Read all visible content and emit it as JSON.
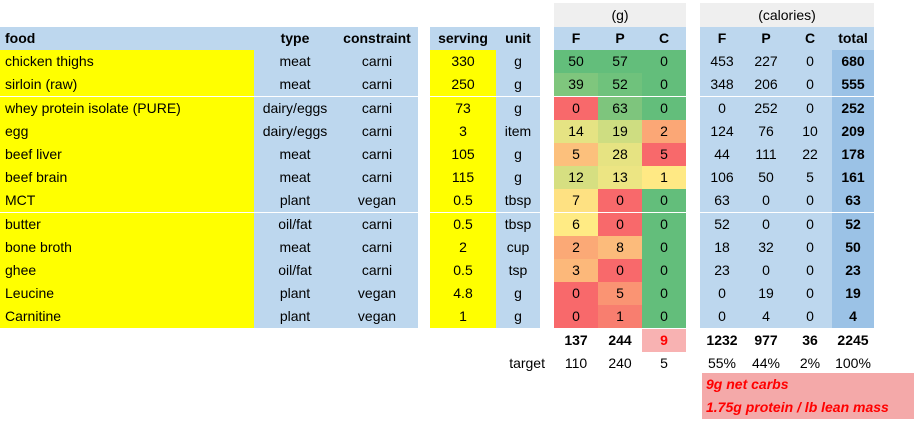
{
  "groups": {
    "grams": "(g)",
    "calories": "(calories)"
  },
  "headers": {
    "food": "food",
    "type": "type",
    "constraint": "constraint",
    "serving": "serving",
    "unit": "unit",
    "g_f": "F",
    "g_p": "P",
    "g_c": "C",
    "cal_f": "F",
    "cal_p": "P",
    "cal_c": "C",
    "total": "total"
  },
  "rows": [
    {
      "food": "chicken thighs",
      "type": "meat",
      "constraint": "carni",
      "serving": "330",
      "unit": "g",
      "gf": "50",
      "gp": "57",
      "gc": "0",
      "cf": "453",
      "cp": "227",
      "cc": "0",
      "total": "680"
    },
    {
      "food": "sirloin (raw)",
      "type": "meat",
      "constraint": "carni",
      "serving": "250",
      "unit": "g",
      "gf": "39",
      "gp": "52",
      "gc": "0",
      "cf": "348",
      "cp": "206",
      "cc": "0",
      "total": "555"
    },
    {
      "food": "whey protein isolate (PURE)",
      "type": "dairy/eggs",
      "constraint": "carni",
      "serving": "73",
      "unit": "g",
      "gf": "0",
      "gp": "63",
      "gc": "0",
      "cf": "0",
      "cp": "252",
      "cc": "0",
      "total": "252"
    },
    {
      "food": "egg",
      "type": "dairy/eggs",
      "constraint": "carni",
      "serving": "3",
      "unit": "item",
      "gf": "14",
      "gp": "19",
      "gc": "2",
      "cf": "124",
      "cp": "76",
      "cc": "10",
      "total": "209"
    },
    {
      "food": "beef liver",
      "type": "meat",
      "constraint": "carni",
      "serving": "105",
      "unit": "g",
      "gf": "5",
      "gp": "28",
      "gc": "5",
      "cf": "44",
      "cp": "111",
      "cc": "22",
      "total": "178"
    },
    {
      "food": "beef brain",
      "type": "meat",
      "constraint": "carni",
      "serving": "115",
      "unit": "g",
      "gf": "12",
      "gp": "13",
      "gc": "1",
      "cf": "106",
      "cp": "50",
      "cc": "5",
      "total": "161"
    },
    {
      "food": "MCT",
      "type": "plant",
      "constraint": "vegan",
      "serving": "0.5",
      "unit": "tbsp",
      "gf": "7",
      "gp": "0",
      "gc": "0",
      "cf": "63",
      "cp": "0",
      "cc": "0",
      "total": "63"
    },
    {
      "food": "butter",
      "type": "oil/fat",
      "constraint": "carni",
      "serving": "0.5",
      "unit": "tbsp",
      "gf": "6",
      "gp": "0",
      "gc": "0",
      "cf": "52",
      "cp": "0",
      "cc": "0",
      "total": "52"
    },
    {
      "food": "bone broth",
      "type": "meat",
      "constraint": "carni",
      "serving": "2",
      "unit": "cup",
      "gf": "2",
      "gp": "8",
      "gc": "0",
      "cf": "18",
      "cp": "32",
      "cc": "0",
      "total": "50"
    },
    {
      "food": "ghee",
      "type": "oil/fat",
      "constraint": "carni",
      "serving": "0.5",
      "unit": "tsp",
      "gf": "3",
      "gp": "0",
      "gc": "0",
      "cf": "23",
      "cp": "0",
      "cc": "0",
      "total": "23"
    },
    {
      "food": "Leucine",
      "type": "plant",
      "constraint": "vegan",
      "serving": "4.8",
      "unit": "g",
      "gf": "0",
      "gp": "5",
      "gc": "0",
      "cf": "0",
      "cp": "19",
      "cc": "0",
      "total": "19"
    },
    {
      "food": "Carnitine",
      "type": "plant",
      "constraint": "vegan",
      "serving": "1",
      "unit": "g",
      "gf": "0",
      "gp": "1",
      "gc": "0",
      "cf": "0",
      "cp": "4",
      "cc": "0",
      "total": "4"
    }
  ],
  "cell_colors": {
    "gf": [
      "#63be7b",
      "#7fc67d",
      "#f8696b",
      "#e5e383",
      "#fcc07c",
      "#d6df81",
      "#fee182",
      "#ffeb84",
      "#fba976",
      "#fcb87a",
      "#f8696b",
      "#f8696b"
    ],
    "gp": [
      "#63be7b",
      "#6fc27c",
      "#7ec57d",
      "#cedd81",
      "#e6e382",
      "#ece583",
      "#f8696b",
      "#f8696b",
      "#fcbb7b",
      "#f8696b",
      "#fa9473",
      "#f87e6f"
    ],
    "gc": [
      "#63be7b",
      "#63be7b",
      "#63be7b",
      "#fba776",
      "#f8696b",
      "#ffe984",
      "#63be7b",
      "#63be7b",
      "#63be7b",
      "#63be7b",
      "#63be7b",
      "#63be7b"
    ]
  },
  "totals": {
    "gf": "137",
    "gp": "244",
    "gc": "9",
    "cf": "1232",
    "cp": "977",
    "cc": "36",
    "total": "2245"
  },
  "target": {
    "label": "target",
    "f": "110",
    "p": "240",
    "c": "5"
  },
  "percents": {
    "f": "55%",
    "p": "44%",
    "c": "2%",
    "total": "100%"
  },
  "notes": [
    "9g net carbs",
    "1.75g protein / lb lean mass"
  ],
  "colors": {
    "food_bg": "#ffff00",
    "info_bg": "#bdd7ee",
    "serving_bg": "#ffff00",
    "unit_bg": "#bdd7ee",
    "cal_bg": "#bdd7ee",
    "total_bg": "#9bc2e6",
    "header_bg": "#bdd7ee",
    "note_bg": "#f4a9a9",
    "note_text": "#ff0000"
  }
}
